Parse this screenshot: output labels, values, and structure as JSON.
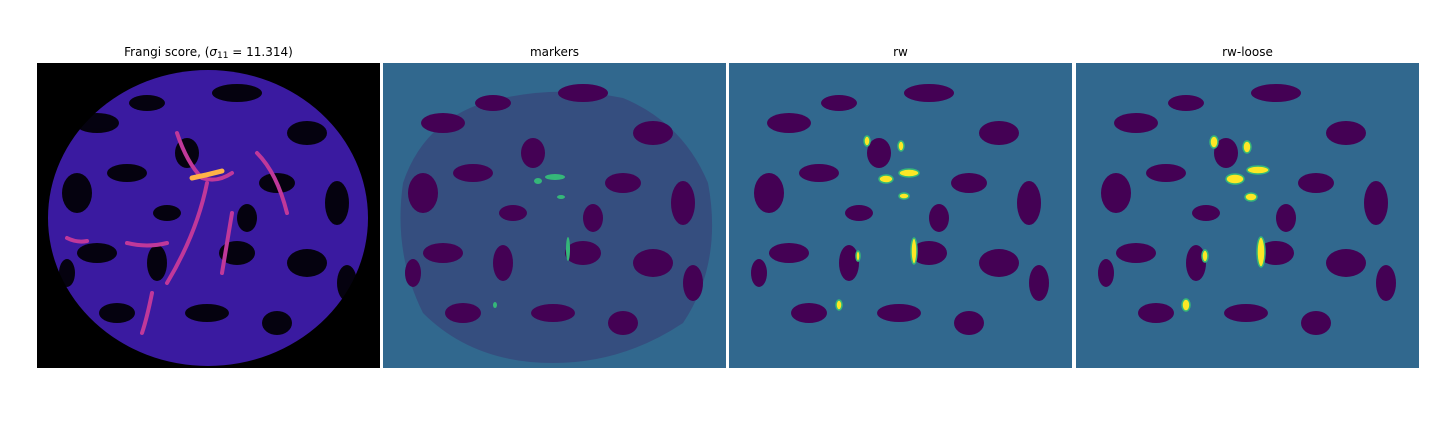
{
  "panels": [
    {
      "title_prefix": "Frangi score, (",
      "title_sigma": "σ",
      "title_sub": "11",
      "title_rest": " = 11.314)",
      "colormap": "magma"
    },
    {
      "title": "markers",
      "colormap": "viridis-markers"
    },
    {
      "title": "rw",
      "colormap": "viridis-labels"
    },
    {
      "title": "rw-loose",
      "colormap": "viridis-labels"
    }
  ],
  "colors": {
    "background_dark": "#000000",
    "frangi_blob": "#2a0f7a",
    "frangi_vessel": "#c0389a",
    "frangi_hot": "#ffb347",
    "label_background": "#31688e",
    "label_blob": "#440154",
    "label_marker": "#35b779",
    "label_vessel": "#fde725"
  }
}
